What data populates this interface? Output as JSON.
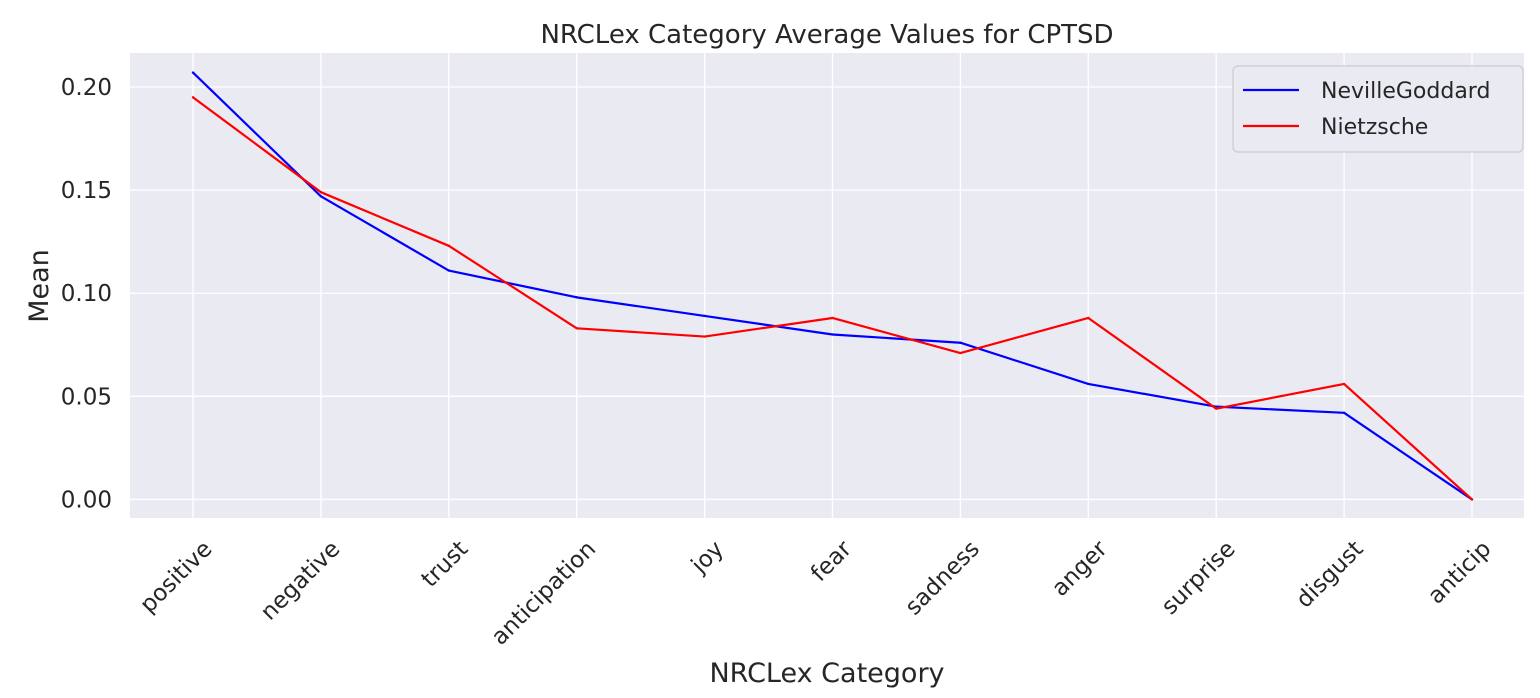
{
  "chart_data": {
    "type": "line",
    "title": "NRCLex Category Average Values for CPTSD",
    "xlabel": "NRCLex Category",
    "ylabel": "Mean",
    "categories": [
      "positive",
      "negative",
      "trust",
      "anticipation",
      "joy",
      "fear",
      "sadness",
      "anger",
      "surprise",
      "disgust",
      "anticip"
    ],
    "series": [
      {
        "name": "NevilleGoddard",
        "color": "#0000ff",
        "values": [
          0.207,
          0.147,
          0.111,
          0.098,
          0.089,
          0.08,
          0.076,
          0.056,
          0.045,
          0.042,
          0.0
        ]
      },
      {
        "name": "Nietzsche",
        "color": "#ff0000",
        "values": [
          0.195,
          0.149,
          0.123,
          0.083,
          0.079,
          0.088,
          0.071,
          0.088,
          0.044,
          0.056,
          0.0
        ]
      }
    ],
    "yticks": [
      "0.00",
      "0.05",
      "0.10",
      "0.15",
      "0.20"
    ],
    "ylim": [
      -0.009,
      0.2165
    ],
    "grid": true,
    "legend_position": "top-right",
    "background_color": "#eaeaf2",
    "grid_color": "#ffffff"
  }
}
